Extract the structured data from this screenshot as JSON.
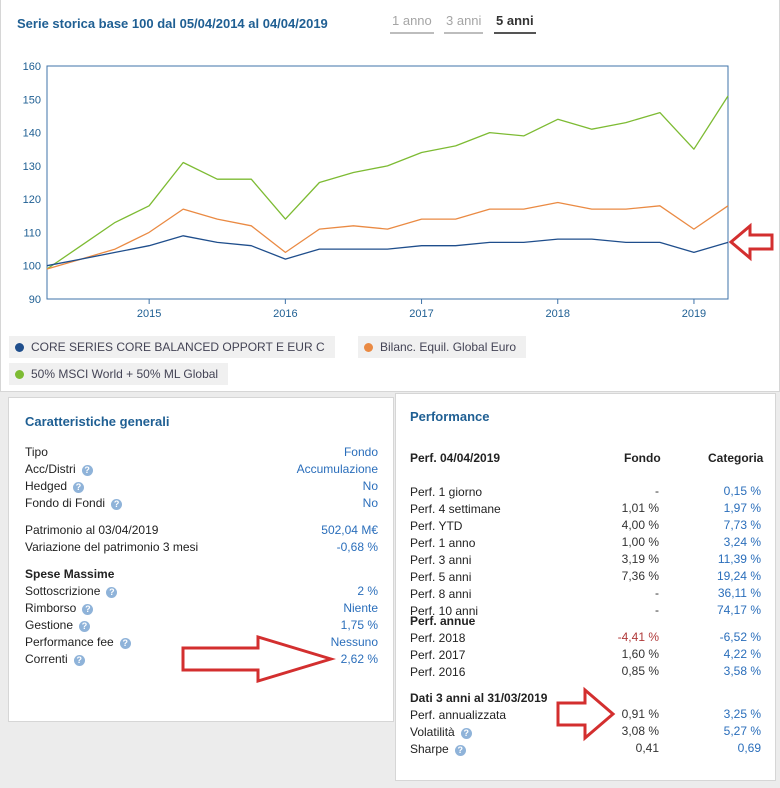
{
  "chart": {
    "title": "Serie storica base 100 dal 05/04/2014 al 04/04/2019",
    "periods": [
      {
        "label": "1 anno",
        "active": false
      },
      {
        "label": "3 anni",
        "active": false
      },
      {
        "label": "5 anni",
        "active": true
      }
    ],
    "y_ticks": [
      "160",
      "150",
      "140",
      "130",
      "120",
      "110",
      "100",
      "90"
    ],
    "x_ticks": [
      "2015",
      "2016",
      "2017",
      "2018",
      "2019"
    ],
    "legend": [
      {
        "label": "CORE SERIES CORE BALANCED OPPORT E EUR C",
        "color": "#1f4e8c"
      },
      {
        "label": "Bilanc. Equil. Global Euro",
        "color": "#ea8a43"
      },
      {
        "label": "50% MSCI World + 50% ML Global",
        "color": "#7dbb33"
      }
    ]
  },
  "chart_data": {
    "type": "line",
    "x_dates": [
      "2014-04",
      "2014-07",
      "2014-10",
      "2015-01",
      "2015-04",
      "2015-07",
      "2015-10",
      "2016-01",
      "2016-04",
      "2016-07",
      "2016-10",
      "2017-01",
      "2017-04",
      "2017-07",
      "2017-10",
      "2018-01",
      "2018-04",
      "2018-07",
      "2018-10",
      "2019-01",
      "2019-04"
    ],
    "ylim": [
      90,
      160
    ],
    "grid": false,
    "legend_position": "bottom",
    "series": [
      {
        "name": "CORE SERIES CORE BALANCED OPPORT E EUR C",
        "color": "#1f4e8c",
        "values": [
          100,
          102,
          104,
          106,
          109,
          107,
          106,
          102,
          105,
          105,
          105,
          106,
          106,
          107,
          107,
          108,
          108,
          107,
          107,
          104,
          107
        ]
      },
      {
        "name": "Bilanc. Equil. Global Euro",
        "color": "#ea8a43",
        "values": [
          99,
          102,
          105,
          110,
          117,
          114,
          112,
          104,
          111,
          112,
          111,
          114,
          114,
          117,
          117,
          119,
          117,
          117,
          118,
          111,
          118
        ]
      },
      {
        "name": "50% MSCI World + 50% ML Global",
        "color": "#7dbb33",
        "values": [
          99,
          106,
          113,
          118,
          131,
          126,
          126,
          114,
          125,
          128,
          130,
          134,
          136,
          140,
          139,
          144,
          141,
          143,
          146,
          135,
          151
        ]
      }
    ]
  },
  "general": {
    "title": "Caratteristiche generali",
    "rows": [
      {
        "label": "Tipo",
        "value": "Fondo",
        "help": false
      },
      {
        "label": "Acc/Distri",
        "value": "Accumulazione",
        "help": true
      },
      {
        "label": "Hedged",
        "value": "No",
        "help": true
      },
      {
        "label": "Fondo di Fondi",
        "value": "No",
        "help": true
      },
      {
        "label": "Patrimonio al 03/04/2019",
        "value": "502,04 M€",
        "help": false
      },
      {
        "label": "Variazione del patrimonio 3 mesi",
        "value": "-0,68 %",
        "help": false
      }
    ],
    "fees_title": "Spese Massime",
    "fees": [
      {
        "label": "Sottoscrizione",
        "value": "2 %"
      },
      {
        "label": "Rimborso",
        "value": "Niente"
      },
      {
        "label": "Gestione",
        "value": "1,75 %"
      },
      {
        "label": "Performance fee",
        "value": "Nessuno"
      },
      {
        "label": "Correnti",
        "value": "2,62 %"
      }
    ]
  },
  "performance": {
    "title": "Performance",
    "header": {
      "period": "Perf. 04/04/2019",
      "fondo": "Fondo",
      "categoria": "Categoria"
    },
    "recent": [
      {
        "label": "Perf. 1 giorno",
        "fondo": "-",
        "cat": "0,15 %"
      },
      {
        "label": "Perf. 4 settimane",
        "fondo": "1,01 %",
        "cat": "1,97 %"
      },
      {
        "label": "Perf. YTD",
        "fondo": "4,00 %",
        "cat": "7,73 %"
      },
      {
        "label": "Perf. 1 anno",
        "fondo": "1,00 %",
        "cat": "3,24 %"
      },
      {
        "label": "Perf. 3 anni",
        "fondo": "3,19 %",
        "cat": "11,39 %"
      },
      {
        "label": "Perf. 5 anni",
        "fondo": "7,36 %",
        "cat": "19,24 %"
      },
      {
        "label": "Perf. 8 anni",
        "fondo": "-",
        "cat": "36,11 %"
      },
      {
        "label": "Perf. 10 anni",
        "fondo": "-",
        "cat": "74,17 %"
      }
    ],
    "annual_title": "Perf. annue",
    "annual": [
      {
        "label": "Perf. 2018",
        "fondo": "-4,41 %",
        "cat": "-6,52 %"
      },
      {
        "label": "Perf. 2017",
        "fondo": "1,60 %",
        "cat": "4,22 %"
      },
      {
        "label": "Perf. 2016",
        "fondo": "0,85 %",
        "cat": "3,58 %"
      }
    ],
    "risk_title": "Dati 3 anni al 31/03/2019",
    "risk": [
      {
        "label": "Perf. annualizzata",
        "fondo": "0,91 %",
        "cat": "3,25 %",
        "help": false
      },
      {
        "label": "Volatilità",
        "fondo": "3,08 %",
        "cat": "5,27 %",
        "help": true
      },
      {
        "label": "Sharpe",
        "fondo": "0,41",
        "cat": "0,69",
        "help": true
      }
    ]
  }
}
